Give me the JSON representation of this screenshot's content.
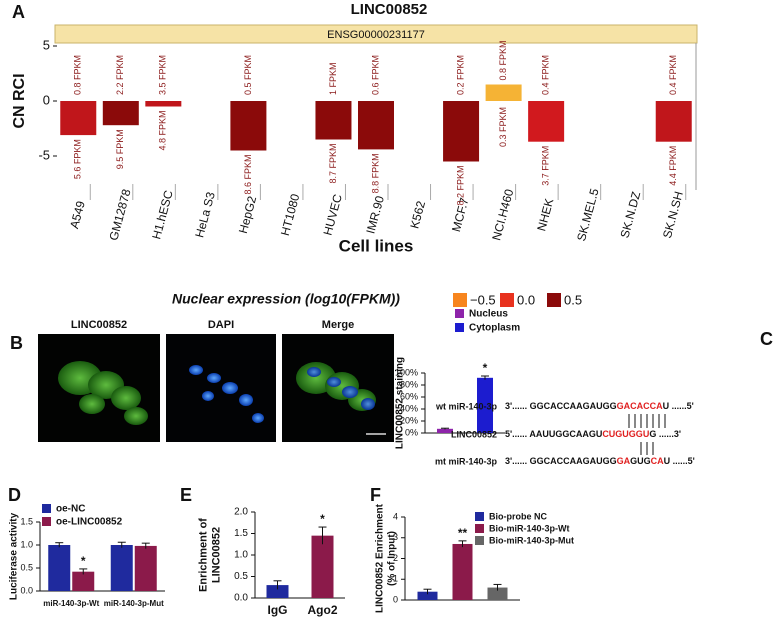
{
  "panel_labels": [
    "A",
    "B",
    "C",
    "D",
    "E",
    "F"
  ],
  "panel_b": {
    "images": [
      "LINC00852",
      "DAPI",
      "Merge"
    ]
  },
  "panel_c": {
    "rows": [
      {
        "label": "wt miR-140-3p",
        "parts": [
          "3'...... GGCACCAAGAUGG",
          "GACACCA",
          "U ......5'"
        ]
      },
      {
        "label": "LINC00852",
        "parts": [
          "5'...... AAUUGGCAAGU",
          "CUGUGGU",
          "G ......3'"
        ]
      },
      {
        "label": "mt miR-140-3p",
        "parts": [
          "3'...... GGCACCAAGAUGG",
          "GA",
          "GUG",
          "CA",
          "U ......5'"
        ]
      }
    ]
  },
  "chart_data": [
    {
      "type": "bar",
      "title": "LINC00852",
      "banner": "ENSG00000231177",
      "y_label": "CN RCI",
      "x_label": "Cell lines",
      "categories": [
        "A549",
        "GM12878",
        "H1.hESC",
        "HeLa S3",
        "HepG2",
        "HT1080",
        "HUVEC",
        "IMR.90",
        "K562",
        "MCF.7",
        "NCI.H460",
        "NHEK",
        "SK.MEL.5",
        "SK.N.DZ",
        "SK.N.SH"
      ],
      "values": [
        -3.1,
        -2.2,
        -0.5,
        null,
        -4.5,
        null,
        -3.5,
        -4.4,
        null,
        -5.5,
        1.5,
        -3.7,
        null,
        null,
        -3.7
      ],
      "colors": [
        "#c0161b",
        "#8b0a0a",
        "#c0161b",
        null,
        "#8b0a0a",
        null,
        "#8b0a0a",
        "#8b0a0a",
        null,
        "#8b0a0a",
        "#f5b335",
        "#d1191e",
        null,
        null,
        "#c0161b"
      ],
      "upper_labels": [
        "0.8 FPKM",
        "2.2 FPKM",
        "3.5 FPKM",
        null,
        "0.5 FPKM",
        null,
        "1 FPKM",
        "0.6 FPKM",
        null,
        "0.2 FPKM",
        "0.8 FPKM",
        "0.4 FPKM",
        null,
        null,
        "0.4 FPKM"
      ],
      "lower_labels": [
        "5.6 FPKM",
        "9.5 FPKM",
        "4.8 FPKM",
        null,
        "8.6 FPKM",
        null,
        "8.7 FPKM",
        "8.8 FPKM",
        null,
        "8.2 FPKM",
        "0.3 FPKM",
        "3.7 FPKM",
        null,
        null,
        "4.4 FPKM"
      ],
      "ylim": [
        -7,
        7
      ],
      "yticks": [
        -5,
        0,
        5
      ],
      "legend": {
        "title": "Nuclear expression (log10(FPKM))",
        "items": [
          {
            "label": "−0.5",
            "color": "#f7851e"
          },
          {
            "label": "0.0",
            "color": "#e8321e"
          },
          {
            "label": "0.5",
            "color": "#8b0a0a"
          }
        ]
      }
    },
    {
      "type": "bar",
      "y_label": "LINC00852 staining",
      "series": [
        {
          "name": "Nucleus",
          "color": "#8e24aa",
          "values": [
            7
          ],
          "errors": [
            1
          ]
        },
        {
          "name": "Cytoplasm",
          "color": "#1c1ccf",
          "values": [
            92
          ],
          "errors": [
            3
          ],
          "annotations": [
            "*"
          ]
        }
      ],
      "ylim": [
        0,
        100
      ],
      "yticks": [
        {
          "value": 0,
          "label": "0%"
        },
        {
          "value": 20,
          "label": "20%"
        },
        {
          "value": 40,
          "label": "40%"
        },
        {
          "value": 60,
          "label": "60%"
        },
        {
          "value": 80,
          "label": "80%"
        },
        {
          "value": 100,
          "label": "100%"
        }
      ]
    },
    {
      "type": "bar",
      "y_label": "Luciferase activity",
      "categories": [
        "miR-140-3p-Wt",
        "miR-140-3p-Mut"
      ],
      "series": [
        {
          "name": "oe-NC",
          "color": "#1f2a9e",
          "values": [
            1.0,
            1.0
          ],
          "errors": [
            0.05,
            0.06
          ]
        },
        {
          "name": "oe-LINC00852",
          "color": "#8b1a4a",
          "values": [
            0.42,
            0.98
          ],
          "errors": [
            0.06,
            0.06
          ],
          "annotations": [
            "*",
            null
          ]
        }
      ],
      "ylim": [
        0,
        1.5
      ],
      "yticks": [
        {
          "value": 0,
          "label": "0.0"
        },
        {
          "value": 0.5,
          "label": "0.5"
        },
        {
          "value": 1,
          "label": "1.0"
        },
        {
          "value": 1.5,
          "label": "1.5"
        }
      ]
    },
    {
      "type": "bar",
      "y_label": [
        "Enrichment of",
        "LINC00852"
      ],
      "categories": [
        "IgG",
        "Ago2"
      ],
      "values": [
        0.3,
        1.45
      ],
      "errors": [
        0.1,
        0.2
      ],
      "colors": [
        "#1f2a9e",
        "#8b1a4a"
      ],
      "annotations": [
        null,
        "*"
      ],
      "ylim": [
        0,
        2
      ],
      "yticks": [
        {
          "value": 0,
          "label": "0.0"
        },
        {
          "value": 0.5,
          "label": "0.5"
        },
        {
          "value": 1,
          "label": "1.0"
        },
        {
          "value": 1.5,
          "label": "1.5"
        },
        {
          "value": 2,
          "label": "2.0"
        }
      ]
    },
    {
      "type": "bar",
      "y_label": [
        "LINC00852 Enrichment",
        "(% of Input)"
      ],
      "series": [
        {
          "name": "Bio-probe NC",
          "color": "#1f2a9e",
          "values": [
            0.4
          ],
          "errors": [
            0.12
          ]
        },
        {
          "name": "Bio-miR-140-3p-Wt",
          "color": "#8b1a4a",
          "values": [
            2.7
          ],
          "errors": [
            0.15
          ],
          "annotations": [
            "**"
          ]
        },
        {
          "name": "Bio-miR-140-3p-Mut",
          "color": "#666666",
          "values": [
            0.6
          ],
          "errors": [
            0.15
          ]
        }
      ],
      "ylim": [
        0,
        4
      ],
      "yticks": [
        0,
        1,
        2,
        3,
        4
      ]
    }
  ]
}
